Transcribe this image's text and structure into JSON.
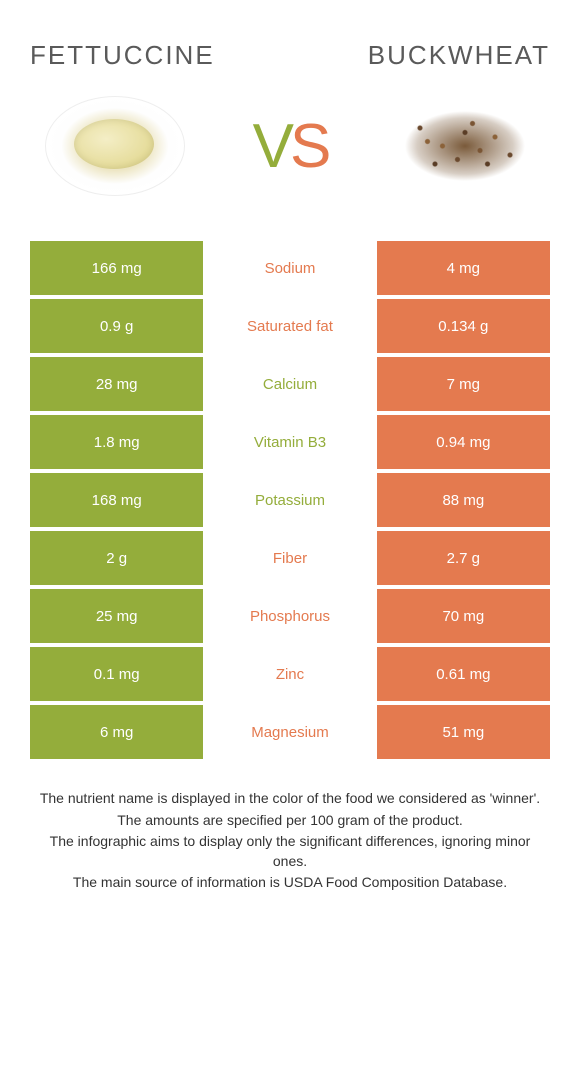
{
  "header": {
    "left_title": "FETTUCCINE",
    "right_title": "BUCKWHEAT",
    "vs_v": "V",
    "vs_s": "S"
  },
  "colors": {
    "left": "#94ad3b",
    "right": "#e47a4f",
    "text": "#5a5a5a",
    "row_text": "#ffffff"
  },
  "rows": [
    {
      "left": "166 mg",
      "label": "Sodium",
      "right": "4 mg",
      "winner": "right"
    },
    {
      "left": "0.9 g",
      "label": "Saturated fat",
      "right": "0.134 g",
      "winner": "right"
    },
    {
      "left": "28 mg",
      "label": "Calcium",
      "right": "7 mg",
      "winner": "left"
    },
    {
      "left": "1.8 mg",
      "label": "Vitamin B3",
      "right": "0.94 mg",
      "winner": "left"
    },
    {
      "left": "168 mg",
      "label": "Potassium",
      "right": "88 mg",
      "winner": "left"
    },
    {
      "left": "2 g",
      "label": "Fiber",
      "right": "2.7 g",
      "winner": "right"
    },
    {
      "left": "25 mg",
      "label": "Phosphorus",
      "right": "70 mg",
      "winner": "right"
    },
    {
      "left": "0.1 mg",
      "label": "Zinc",
      "right": "0.61 mg",
      "winner": "right"
    },
    {
      "left": "6 mg",
      "label": "Magnesium",
      "right": "51 mg",
      "winner": "right"
    }
  ],
  "footer": {
    "line1": "The nutrient name is displayed in the color of the food we considered as 'winner'.",
    "line2": "The amounts are specified per 100 gram of the product.",
    "line3": "The infographic aims to display only the significant differences, ignoring minor ones.",
    "line4": "The main source of information is USDA Food Composition Database."
  }
}
